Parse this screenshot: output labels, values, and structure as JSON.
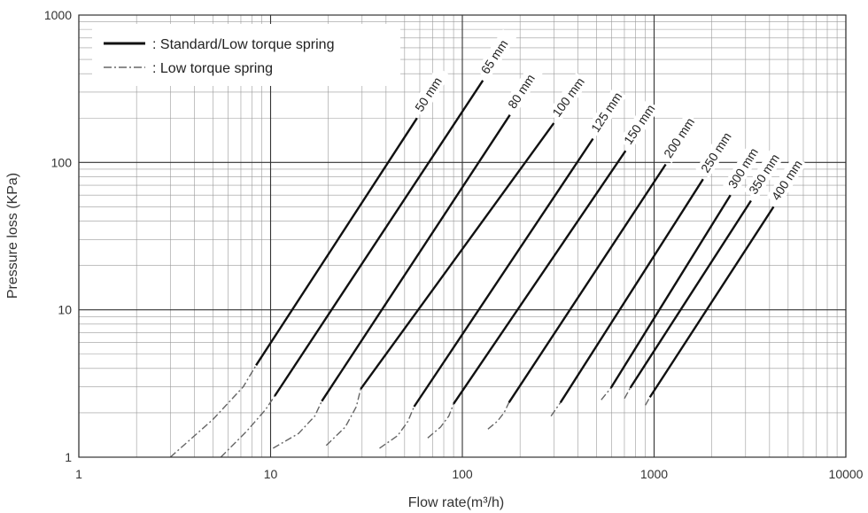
{
  "chart_data": {
    "type": "line",
    "xscale": "log",
    "yscale": "log",
    "xlim": [
      1,
      10000
    ],
    "ylim": [
      1,
      1000
    ],
    "xlabel": "Flow rate(m³/h)",
    "ylabel": "Pressure loss (KPa)",
    "x_ticks": [
      "1",
      "10",
      "100",
      "1000",
      "10000"
    ],
    "y_ticks": [
      "1",
      "10",
      "100",
      "1000"
    ],
    "grid": true,
    "legend": {
      "placement": "top-left",
      "entries": [
        {
          "style": "solid",
          "label": "Standard/Low torque spring"
        },
        {
          "style": "dashdot",
          "label": "Low torque spring"
        }
      ]
    },
    "series": [
      {
        "name": "50 mm",
        "solid": [
          [
            8.4,
            4.2
          ],
          [
            58,
            200
          ]
        ],
        "dashed": [
          [
            3.0,
            1.0
          ],
          [
            5.0,
            1.8
          ],
          [
            7.2,
            3.0
          ],
          [
            8.4,
            4.2
          ]
        ]
      },
      {
        "name": "65 mm",
        "solid": [
          [
            10.5,
            2.6
          ],
          [
            128,
            360
          ]
        ],
        "dashed": [
          [
            5.5,
            1.0
          ],
          [
            7.5,
            1.5
          ],
          [
            9.4,
            2.1
          ],
          [
            10.5,
            2.6
          ]
        ]
      },
      {
        "name": "80 mm",
        "solid": [
          [
            18.5,
            2.4
          ],
          [
            177,
            210
          ]
        ],
        "dashed": [
          [
            10.3,
            1.15
          ],
          [
            14.0,
            1.45
          ],
          [
            17.0,
            1.9
          ],
          [
            18.5,
            2.4
          ]
        ]
      },
      {
        "name": "100 mm",
        "solid": [
          [
            29.5,
            2.9
          ],
          [
            300,
            185
          ]
        ],
        "dashed": [
          [
            19.5,
            1.2
          ],
          [
            24.5,
            1.6
          ],
          [
            28.0,
            2.2
          ],
          [
            29.5,
            2.9
          ]
        ]
      },
      {
        "name": "125 mm",
        "solid": [
          [
            56,
            2.2
          ],
          [
            480,
            145
          ]
        ],
        "dashed": [
          [
            37,
            1.15
          ],
          [
            46,
            1.4
          ],
          [
            52,
            1.75
          ],
          [
            56,
            2.2
          ]
        ]
      },
      {
        "name": "150 mm",
        "solid": [
          [
            90,
            2.3
          ],
          [
            710,
            120
          ]
        ],
        "dashed": [
          [
            66,
            1.35
          ],
          [
            77,
            1.6
          ],
          [
            85,
            1.9
          ],
          [
            90,
            2.3
          ]
        ]
      },
      {
        "name": "200 mm",
        "solid": [
          [
            175,
            2.35
          ],
          [
            1150,
            97
          ]
        ],
        "dashed": [
          [
            136,
            1.55
          ],
          [
            152,
            1.75
          ],
          [
            165,
            2.0
          ],
          [
            175,
            2.35
          ]
        ]
      },
      {
        "name": "250 mm",
        "solid": [
          [
            325,
            2.35
          ],
          [
            1800,
            77
          ]
        ],
        "dashed": [
          [
            290,
            1.9
          ],
          [
            325,
            2.35
          ]
        ]
      },
      {
        "name": "300 mm",
        "solid": [
          [
            595,
            2.95
          ],
          [
            2500,
            60
          ]
        ],
        "dashed": [
          [
            530,
            2.45
          ],
          [
            595,
            2.95
          ]
        ]
      },
      {
        "name": "350 mm",
        "solid": [
          [
            750,
            2.95
          ],
          [
            3200,
            55
          ]
        ],
        "dashed": [
          [
            700,
            2.5
          ],
          [
            750,
            2.95
          ]
        ]
      },
      {
        "name": "400 mm",
        "solid": [
          [
            950,
            2.55
          ],
          [
            4200,
            50
          ]
        ],
        "dashed": [
          [
            900,
            2.25
          ],
          [
            950,
            2.55
          ]
        ]
      }
    ]
  }
}
